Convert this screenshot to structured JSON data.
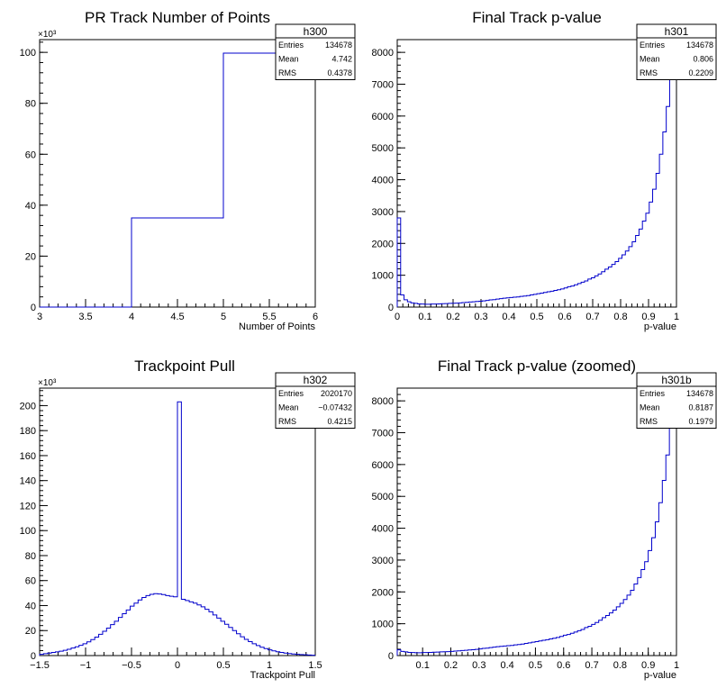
{
  "chart_data": [
    {
      "type": "histogram",
      "title": "PR Track Number of Points",
      "xlabel": "Number of Points",
      "ylabel": "",
      "xlim": [
        3,
        6
      ],
      "ylim": [
        0,
        105000
      ],
      "y_multiplier_label": "×10³",
      "x_ticks": [
        "3",
        "3.5",
        "4",
        "4.5",
        "5",
        "5.5",
        "6"
      ],
      "y_ticks": [
        "0",
        "20",
        "40",
        "60",
        "80",
        "100"
      ],
      "bins": {
        "x": [
          3,
          4,
          5,
          6
        ],
        "values": [
          0,
          35000,
          99700
        ]
      },
      "stats": {
        "name": "h300",
        "rows": [
          [
            "Entries",
            "134678"
          ],
          [
            "Mean",
            "4.742"
          ],
          [
            "RMS",
            "0.4378"
          ]
        ]
      }
    },
    {
      "type": "histogram",
      "title": "Final Track p-value",
      "xlabel": "p-value",
      "ylabel": "",
      "xlim": [
        0,
        1
      ],
      "ylim": [
        0,
        8400
      ],
      "x_ticks": [
        "0",
        "0.1",
        "0.2",
        "0.3",
        "0.4",
        "0.5",
        "0.6",
        "0.7",
        "0.8",
        "0.9",
        "1"
      ],
      "y_ticks": [
        "0",
        "1000",
        "2000",
        "3000",
        "4000",
        "5000",
        "6000",
        "7000",
        "8000"
      ],
      "bins": {
        "xmin": 0,
        "xmax": 1,
        "values": [
          2800,
          380,
          230,
          165,
          130,
          115,
          100,
          95,
          90,
          90,
          95,
          95,
          100,
          105,
          110,
          115,
          120,
          125,
          130,
          140,
          150,
          160,
          165,
          175,
          185,
          195,
          210,
          225,
          235,
          250,
          265,
          280,
          290,
          300,
          310,
          320,
          335,
          345,
          360,
          380,
          400,
          420,
          440,
          460,
          480,
          500,
          525,
          545,
          570,
          600,
          640,
          660,
          700,
          740,
          780,
          820,
          880,
          920,
          980,
          1040,
          1110,
          1190,
          1260,
          1340,
          1430,
          1530,
          1640,
          1760,
          1900,
          2050,
          2250,
          2450,
          2700,
          2950,
          3300,
          3700,
          4200,
          4800,
          5500,
          6300,
          7200,
          7400
        ]
      },
      "stats": {
        "name": "h301",
        "rows": [
          [
            "Entries",
            "134678"
          ],
          [
            "Mean",
            "0.806"
          ],
          [
            "RMS",
            "0.2209"
          ]
        ]
      }
    },
    {
      "type": "histogram",
      "title": "Trackpoint Pull",
      "xlabel": "Trackpoint Pull",
      "ylabel": "",
      "xlim": [
        -1.5,
        1.5
      ],
      "ylim": [
        0,
        214000
      ],
      "y_multiplier_label": "×10³",
      "x_ticks": [
        "−1.5",
        "−1",
        "−0.5",
        "0",
        "0.5",
        "1",
        "1.5"
      ],
      "y_ticks": [
        "0",
        "20",
        "40",
        "60",
        "80",
        "100",
        "120",
        "140",
        "160",
        "180",
        "200"
      ],
      "bins": {
        "xmin": -1.5,
        "xmax": 1.5,
        "values": [
          1000,
          1500,
          2000,
          2500,
          3000,
          3500,
          4200,
          5000,
          6000,
          7000,
          8200,
          9500,
          11000,
          12800,
          14800,
          17000,
          19500,
          22000,
          24800,
          27500,
          30500,
          33500,
          36500,
          39500,
          42000,
          44500,
          46500,
          48000,
          49000,
          49500,
          49300,
          48800,
          48000,
          47500,
          47000,
          203000,
          45000,
          44000,
          43000,
          42000,
          40500,
          39000,
          37000,
          35000,
          32500,
          30000,
          27500,
          25000,
          22500,
          20000,
          17500,
          15000,
          13000,
          11200,
          9500,
          8000,
          6700,
          5600,
          4600,
          3800,
          3100,
          2500,
          2000,
          1600,
          1300,
          1000,
          800,
          600,
          450,
          300
        ]
      },
      "stats": {
        "name": "h302",
        "rows": [
          [
            "Entries",
            "2020170"
          ],
          [
            "Mean",
            "−0.07432"
          ],
          [
            "RMS",
            "0.4215"
          ]
        ]
      }
    },
    {
      "type": "histogram",
      "title": "Final Track p-value (zoomed)",
      "xlabel": "p-value",
      "ylabel": "",
      "xlim": [
        0.01,
        1
      ],
      "ylim": [
        0,
        8400
      ],
      "x_ticks": [
        "0.1",
        "0.2",
        "0.3",
        "0.4",
        "0.5",
        "0.6",
        "0.7",
        "0.8",
        "0.9",
        "1"
      ],
      "y_ticks": [
        "0",
        "1000",
        "2000",
        "3000",
        "4000",
        "5000",
        "6000",
        "7000",
        "8000"
      ],
      "bins": {
        "xmin": 0.01,
        "xmax": 1,
        "values": [
          180,
          130,
          115,
          100,
          95,
          90,
          90,
          95,
          95,
          100,
          105,
          110,
          115,
          120,
          125,
          130,
          140,
          150,
          160,
          165,
          175,
          185,
          195,
          210,
          225,
          235,
          250,
          265,
          280,
          290,
          300,
          310,
          320,
          335,
          345,
          360,
          380,
          400,
          420,
          440,
          460,
          480,
          500,
          525,
          545,
          570,
          600,
          640,
          660,
          700,
          740,
          780,
          820,
          880,
          920,
          980,
          1040,
          1110,
          1190,
          1260,
          1340,
          1430,
          1530,
          1640,
          1760,
          1900,
          2050,
          2250,
          2450,
          2700,
          2950,
          3300,
          3700,
          4200,
          4800,
          5500,
          6300,
          7200,
          7400
        ]
      },
      "stats": {
        "name": "h301b",
        "rows": [
          [
            "Entries",
            "134678"
          ],
          [
            "Mean",
            "0.8187"
          ],
          [
            "RMS",
            "0.1979"
          ]
        ]
      }
    }
  ]
}
